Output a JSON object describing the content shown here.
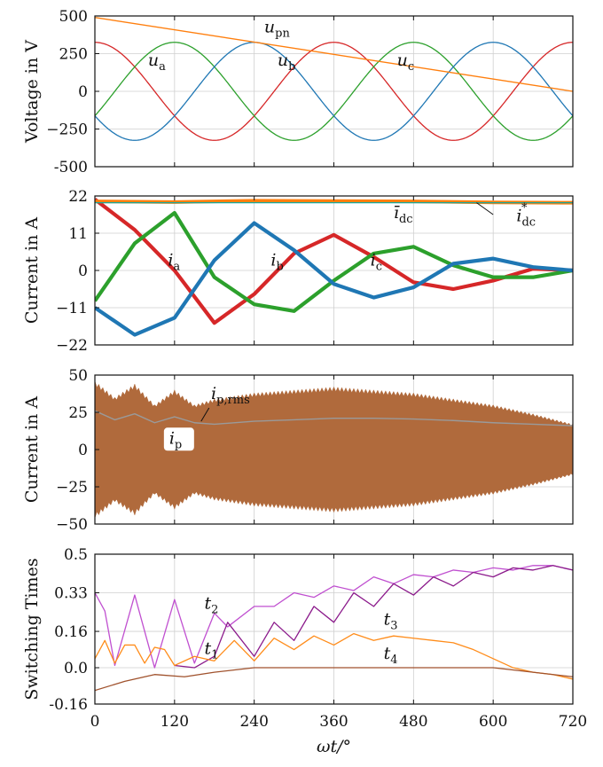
{
  "chart_data": [
    {
      "type": "line",
      "ylabel": "Voltage in V",
      "xlim": [
        0,
        720
      ],
      "ylim": [
        -500,
        500
      ],
      "yticks": [
        -500,
        -250,
        0,
        250,
        500
      ],
      "ytick_labels": [
        "-500",
        "−250",
        "0",
        "250",
        "500"
      ],
      "series": [
        {
          "name": "u_a",
          "color": "#d62728",
          "amplitude": 325,
          "phase_deg": 90
        },
        {
          "name": "u_b",
          "color": "#2ca02c",
          "amplitude": 325,
          "phase_deg": -30
        },
        {
          "name": "u_c",
          "color": "#1f77b4",
          "amplitude": 325,
          "phase_deg": 210
        },
        {
          "name": "u_pn",
          "color": "#ff7f0e",
          "x": [
            0,
            720
          ],
          "y": [
            490,
            0
          ]
        }
      ],
      "annotations": [
        {
          "label": "u",
          "sub": "pn",
          "x": 255,
          "y": 390
        },
        {
          "label": "u",
          "sub": "a",
          "x": 80,
          "y": 170
        },
        {
          "label": "u",
          "sub": "b",
          "x": 275,
          "y": 170
        },
        {
          "label": "u",
          "sub": "c",
          "x": 455,
          "y": 170
        }
      ]
    },
    {
      "type": "line",
      "ylabel": "Current in A",
      "xlim": [
        0,
        720
      ],
      "ylim": [
        -22,
        22
      ],
      "yticks": [
        -22,
        -11,
        0,
        11,
        22
      ],
      "ytick_labels": [
        "−22",
        "−11",
        "0",
        "11",
        "22"
      ],
      "series": [
        {
          "name": "i_a",
          "color": "#d62728",
          "x": [
            0,
            60,
            120,
            180,
            240,
            300,
            360,
            420,
            480,
            540,
            600,
            660,
            720
          ],
          "y": [
            21,
            12,
            0,
            -15.5,
            -7,
            5,
            10.5,
            4,
            -3.5,
            -5.5,
            -3,
            0.5,
            0
          ]
        },
        {
          "name": "i_b",
          "color": "#2ca02c",
          "x": [
            0,
            60,
            120,
            180,
            240,
            300,
            360,
            420,
            480,
            540,
            600,
            660,
            720
          ],
          "y": [
            -9,
            8,
            17,
            -2,
            -10,
            -12,
            -3,
            5,
            7,
            1.5,
            -2,
            -2,
            0
          ]
        },
        {
          "name": "i_c",
          "color": "#1f77b4",
          "x": [
            0,
            60,
            120,
            180,
            240,
            300,
            360,
            420,
            480,
            540,
            600,
            660,
            720
          ],
          "y": [
            -11,
            -19,
            -14,
            3,
            14,
            6,
            -4,
            -8,
            -5,
            2,
            3.5,
            1,
            0
          ]
        },
        {
          "name": "i_dc",
          "color": "#ff7f0e",
          "x": [
            0,
            120,
            240,
            360,
            480,
            600,
            720
          ],
          "y": [
            20.4,
            20.2,
            20.6,
            20.5,
            20.4,
            20.1,
            20
          ]
        },
        {
          "name": "i_dc*",
          "color": "#17a89a",
          "x": [
            0,
            720
          ],
          "y": [
            20,
            20
          ]
        }
      ],
      "annotations": [
        {
          "label": "i",
          "sub": "a",
          "x": 110,
          "y": 1.5
        },
        {
          "label": "i",
          "sub": "b",
          "x": 265,
          "y": 1.5
        },
        {
          "label": "i",
          "sub": "c",
          "x": 415,
          "y": 1.5
        },
        {
          "label": "ī",
          "sub": "dc",
          "x": 450,
          "y": 15.5
        },
        {
          "label": "i",
          "sub": "dc",
          "sup": "*",
          "x": 635,
          "y": 14.5
        }
      ]
    },
    {
      "type": "area",
      "ylabel": "Current in A",
      "xlim": [
        0,
        720
      ],
      "ylim": [
        -50,
        50
      ],
      "yticks": [
        -50,
        -25,
        0,
        25,
        50
      ],
      "ytick_labels": [
        "−50",
        "−25",
        "0",
        "25",
        "50"
      ],
      "series": [
        {
          "name": "i_p",
          "color": "#b06a3c",
          "x": [
            0,
            30,
            60,
            90,
            120,
            150,
            180,
            240,
            300,
            360,
            420,
            480,
            540,
            600,
            660,
            720
          ],
          "envelope": [
            46,
            35,
            44,
            30,
            40,
            30,
            34,
            38,
            40,
            42,
            40,
            38,
            34,
            30,
            24,
            17
          ]
        },
        {
          "name": "i_p,rms",
          "color": "#9a9a9a",
          "x": [
            0,
            30,
            60,
            90,
            120,
            150,
            180,
            240,
            300,
            360,
            420,
            480,
            540,
            600,
            660,
            720
          ],
          "y": [
            26,
            20,
            24,
            18,
            22,
            18,
            17,
            19,
            20,
            21,
            21,
            20.5,
            19.5,
            18,
            17,
            16
          ]
        }
      ],
      "annotations": [
        {
          "label": "i",
          "sub": "p,rms",
          "x": 175,
          "y": 34
        },
        {
          "label": "i",
          "sub": "p",
          "x": 112,
          "y": 4
        }
      ]
    },
    {
      "type": "line",
      "ylabel": "Switching Times",
      "xlim": [
        0,
        720
      ],
      "ylim": [
        -0.16,
        0.5
      ],
      "yticks": [
        -0.16,
        0,
        0.16,
        0.33,
        0.5
      ],
      "ytick_labels": [
        "-0.16",
        "0.0",
        "0.16",
        "0.33",
        "0.5"
      ],
      "xticks": [
        0,
        120,
        240,
        360,
        480,
        600,
        720
      ],
      "xtick_labels": [
        "0",
        "120",
        "240",
        "360",
        "480",
        "600",
        "720"
      ],
      "xlabel": "ωt/°",
      "series": [
        {
          "name": "t_2",
          "color": "#c050d0",
          "x": [
            0,
            15,
            30,
            60,
            90,
            120,
            150,
            180,
            200,
            240,
            270,
            300,
            330,
            360,
            390,
            420,
            450,
            480,
            510,
            540,
            570,
            600,
            630,
            660,
            690,
            720
          ],
          "y": [
            0.33,
            0.25,
            0.01,
            0.32,
            0,
            0.3,
            0.02,
            0.24,
            0.18,
            0.27,
            0.27,
            0.33,
            0.31,
            0.36,
            0.34,
            0.4,
            0.37,
            0.41,
            0.4,
            0.43,
            0.42,
            0.44,
            0.43,
            0.45,
            0.45,
            0.43
          ]
        },
        {
          "name": "t_1",
          "color": "#8b1a8b",
          "x": [
            120,
            150,
            180,
            200,
            240,
            270,
            300,
            330,
            360,
            390,
            420,
            450,
            480,
            510,
            540,
            570,
            600,
            630,
            660,
            690,
            720
          ],
          "y": [
            0.01,
            0,
            0.05,
            0.2,
            0.05,
            0.2,
            0.12,
            0.27,
            0.2,
            0.33,
            0.27,
            0.37,
            0.32,
            0.4,
            0.36,
            0.42,
            0.4,
            0.44,
            0.43,
            0.45,
            0.43
          ]
        },
        {
          "name": "t_3",
          "color": "#ff8c1a",
          "x": [
            0,
            15,
            30,
            45,
            60,
            75,
            90,
            105,
            120,
            150,
            180,
            210,
            240,
            270,
            300,
            330,
            360,
            390,
            420,
            450,
            480,
            510,
            540,
            570,
            600,
            630,
            660,
            690,
            720
          ],
          "y": [
            0.04,
            0.12,
            0.02,
            0.1,
            0.1,
            0.02,
            0.09,
            0.08,
            0.01,
            0.05,
            0.03,
            0.12,
            0.03,
            0.13,
            0.08,
            0.14,
            0.1,
            0.15,
            0.12,
            0.14,
            0.13,
            0.12,
            0.11,
            0.08,
            0.04,
            0,
            -0.02,
            -0.03,
            -0.05
          ]
        },
        {
          "name": "t_4",
          "color": "#a0522d",
          "x": [
            0,
            45,
            90,
            135,
            180,
            240,
            300,
            360,
            420,
            480,
            540,
            600,
            660,
            720
          ],
          "y": [
            -0.1,
            -0.06,
            -0.03,
            -0.04,
            -0.02,
            0,
            0,
            0,
            0,
            0,
            0,
            0,
            -0.02,
            -0.04
          ]
        }
      ],
      "annotations": [
        {
          "label": "t",
          "sub": "2",
          "x": 165,
          "y": 0.26
        },
        {
          "label": "t",
          "sub": "1",
          "x": 165,
          "y": 0.06
        },
        {
          "label": "t",
          "sub": "3",
          "x": 435,
          "y": 0.19
        },
        {
          "label": "t",
          "sub": "4",
          "x": 435,
          "y": 0.04
        }
      ]
    }
  ]
}
